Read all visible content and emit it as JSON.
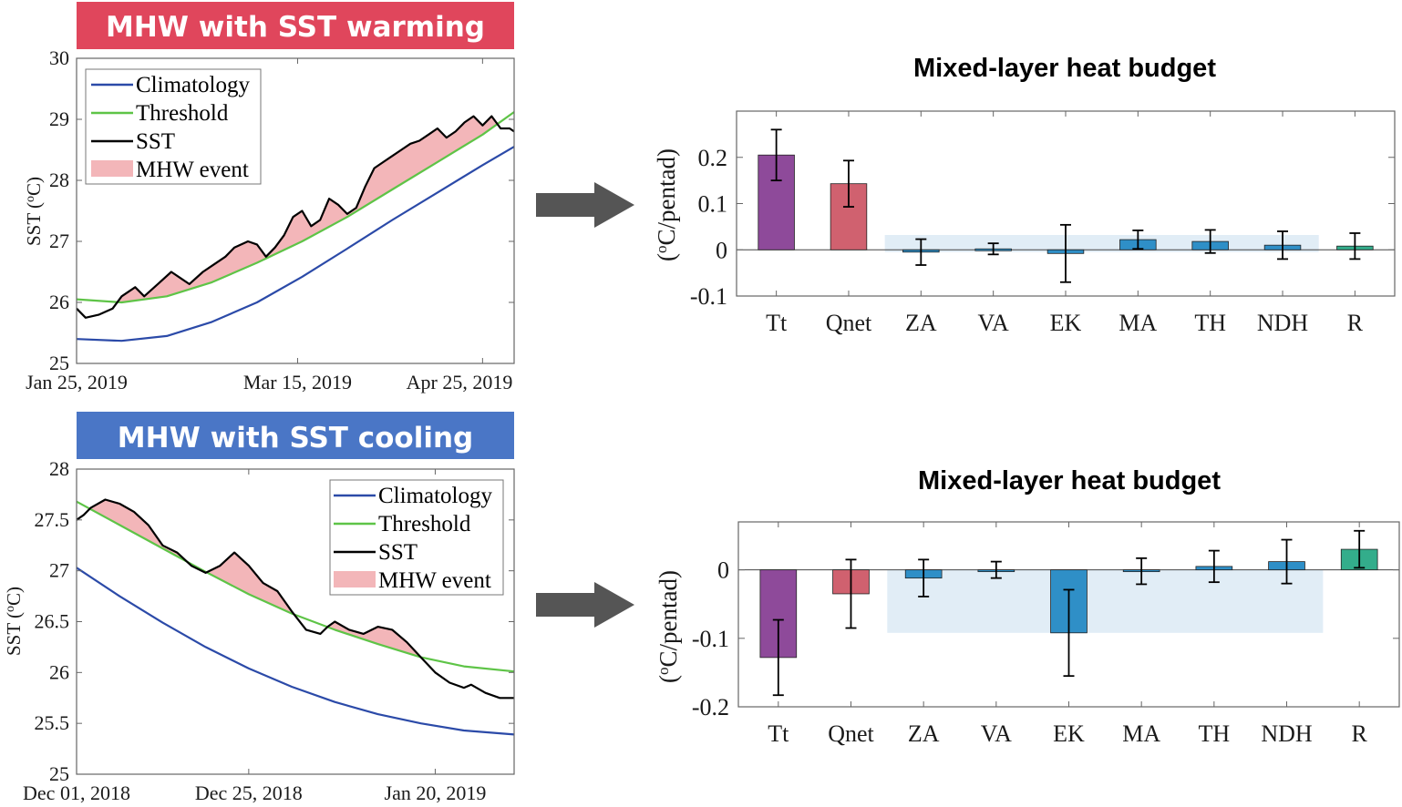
{
  "chart_data": [
    {
      "type": "line",
      "banner": "MHW with SST warming",
      "banner_color": "#e0465c",
      "ylabel": "SST (",
      "ylabel_sup": "o",
      "ylabel_end": "C)",
      "ylim": [
        25,
        30
      ],
      "yticks": [
        "25",
        "26",
        "27",
        "28",
        "29",
        "30"
      ],
      "xlim": [
        0,
        97
      ],
      "xticks": [
        {
          "x": 0,
          "label": "Jan 25, 2019"
        },
        {
          "x": 49,
          "label": "Mar 15, 2019"
        },
        {
          "x": 90,
          "label": "Apr 25, 2019"
        }
      ],
      "legend": [
        "Climatology",
        "Threshold",
        "SST",
        "MHW event"
      ],
      "legend_position": "top-left",
      "colors": {
        "climatology": "#2b4aa8",
        "threshold": "#5ec447",
        "sst": "#000000",
        "event": "#f3b6b9"
      },
      "series": [
        {
          "name": "Climatology",
          "x": [
            0,
            10,
            20,
            30,
            40,
            50,
            60,
            70,
            80,
            90,
            97
          ],
          "values": [
            25.4,
            25.37,
            25.45,
            25.68,
            26.0,
            26.42,
            26.88,
            27.35,
            27.8,
            28.25,
            28.55
          ]
        },
        {
          "name": "Threshold",
          "x": [
            0,
            10,
            20,
            30,
            40,
            50,
            60,
            70,
            80,
            90,
            97
          ],
          "values": [
            26.05,
            26.0,
            26.1,
            26.33,
            26.65,
            27.0,
            27.4,
            27.85,
            28.3,
            28.75,
            29.12
          ]
        },
        {
          "name": "SST",
          "x": [
            0,
            2,
            5,
            8,
            10,
            13,
            15,
            18,
            21,
            23,
            25,
            28,
            30,
            33,
            35,
            38,
            40,
            42,
            44,
            46,
            48,
            50,
            52,
            54,
            56,
            58,
            60,
            62,
            64,
            66,
            68,
            70,
            72,
            74,
            76,
            78,
            80,
            82,
            84,
            86,
            88,
            90,
            92,
            94,
            96,
            97
          ],
          "values": [
            25.9,
            25.75,
            25.8,
            25.9,
            26.1,
            26.25,
            26.1,
            26.3,
            26.5,
            26.4,
            26.3,
            26.5,
            26.6,
            26.75,
            26.9,
            27.0,
            26.95,
            26.75,
            26.9,
            27.1,
            27.4,
            27.5,
            27.25,
            27.35,
            27.7,
            27.6,
            27.45,
            27.55,
            27.9,
            28.2,
            28.3,
            28.4,
            28.5,
            28.6,
            28.65,
            28.75,
            28.85,
            28.7,
            28.8,
            28.95,
            29.05,
            28.9,
            29.05,
            28.85,
            28.85,
            28.8
          ]
        }
      ]
    },
    {
      "type": "bar",
      "title": "Mixed-layer heat budget",
      "ylabel": "(",
      "ylabel_sup": "o",
      "ylabel_end": "C/pentad)",
      "ylim": [
        -0.1,
        0.3
      ],
      "yticks": [
        "-0.1",
        "0",
        "0.1",
        "0.2"
      ],
      "categories": [
        "Tt",
        "Qnet",
        "ZA",
        "VA",
        "EK",
        "MA",
        "TH",
        "NDH",
        "R"
      ],
      "values": [
        0.205,
        0.143,
        -0.005,
        0.002,
        -0.008,
        0.022,
        0.018,
        0.01,
        0.008
      ],
      "errors": [
        0.055,
        0.05,
        0.028,
        0.012,
        0.062,
        0.02,
        0.025,
        0.03,
        0.028
      ],
      "bar_colors": [
        "#8e4a9a",
        "#d0616f",
        "#2f8fc7",
        "#2f8fc7",
        "#2f8fc7",
        "#2f8fc7",
        "#2f8fc7",
        "#2f8fc7",
        "#33ad8b"
      ],
      "shade": {
        "from": "ZA",
        "to": "NDH",
        "ymin": -0.005,
        "ymax": 0.032,
        "color": "#e1edf6"
      },
      "arrow_color": "#555555"
    },
    {
      "type": "line",
      "banner": "MHW with SST cooling",
      "banner_color": "#4a76c6",
      "ylabel": "SST (",
      "ylabel_sup": "o",
      "ylabel_end": "C)",
      "ylim": [
        25,
        28
      ],
      "yticks": [
        "25",
        "25.5",
        "26",
        "26.5",
        "27",
        "27.5",
        "28"
      ],
      "xlim": [
        0,
        61
      ],
      "xticks": [
        {
          "x": 0,
          "label": "Dec 01, 2018"
        },
        {
          "x": 24,
          "label": "Dec 25, 2018"
        },
        {
          "x": 50,
          "label": "Jan 20, 2019"
        }
      ],
      "legend": [
        "Climatology",
        "Threshold",
        "SST",
        "MHW event"
      ],
      "legend_position": "top-right",
      "colors": {
        "climatology": "#2b4aa8",
        "threshold": "#5ec447",
        "sst": "#000000",
        "event": "#f3b6b9"
      },
      "series": [
        {
          "name": "Climatology",
          "x": [
            0,
            6,
            12,
            18,
            24,
            30,
            36,
            42,
            48,
            54,
            61
          ],
          "values": [
            27.03,
            26.75,
            26.49,
            26.25,
            26.04,
            25.86,
            25.71,
            25.59,
            25.5,
            25.43,
            25.39
          ]
        },
        {
          "name": "Threshold",
          "x": [
            0,
            6,
            12,
            18,
            24,
            30,
            36,
            42,
            48,
            54,
            61
          ],
          "values": [
            27.68,
            27.45,
            27.22,
            26.99,
            26.77,
            26.58,
            26.42,
            26.28,
            26.15,
            26.06,
            26.01
          ]
        },
        {
          "name": "SST",
          "x": [
            0,
            1,
            2,
            4,
            6,
            8,
            10,
            11,
            12,
            14,
            16,
            18,
            20,
            22,
            24,
            26,
            28,
            30,
            32,
            34,
            35,
            36,
            38,
            40,
            42,
            44,
            46,
            48,
            50,
            52,
            54,
            55,
            57,
            59,
            61
          ],
          "values": [
            27.5,
            27.55,
            27.62,
            27.7,
            27.66,
            27.58,
            27.45,
            27.35,
            27.25,
            27.18,
            27.05,
            26.98,
            27.05,
            27.18,
            27.05,
            26.88,
            26.8,
            26.6,
            26.42,
            26.38,
            26.45,
            26.5,
            26.42,
            26.38,
            26.45,
            26.42,
            26.3,
            26.15,
            26.0,
            25.9,
            25.85,
            25.88,
            25.8,
            25.75,
            25.75
          ]
        }
      ]
    },
    {
      "type": "bar",
      "title": "Mixed-layer heat budget",
      "ylabel": "(",
      "ylabel_sup": "o",
      "ylabel_end": "C/pentad)",
      "ylim": [
        -0.2,
        0.07
      ],
      "yticks": [
        "-0.2",
        "-0.1",
        "0"
      ],
      "categories": [
        "Tt",
        "Qnet",
        "ZA",
        "VA",
        "EK",
        "MA",
        "TH",
        "NDH",
        "R"
      ],
      "values": [
        -0.128,
        -0.035,
        -0.012,
        0.0,
        -0.092,
        -0.002,
        0.005,
        0.012,
        0.03
      ],
      "errors": [
        0.055,
        0.05,
        0.027,
        0.012,
        0.063,
        0.019,
        0.023,
        0.032,
        0.027
      ],
      "bar_colors": [
        "#8e4a9a",
        "#d0616f",
        "#2f8fc7",
        "#2f8fc7",
        "#2f8fc7",
        "#2f8fc7",
        "#2f8fc7",
        "#2f8fc7",
        "#33ad8b"
      ],
      "shade": {
        "from": "ZA",
        "to": "NDH",
        "ymin": -0.092,
        "ymax": 0.0,
        "color": "#e1edf6"
      },
      "arrow_color": "#555555"
    }
  ]
}
